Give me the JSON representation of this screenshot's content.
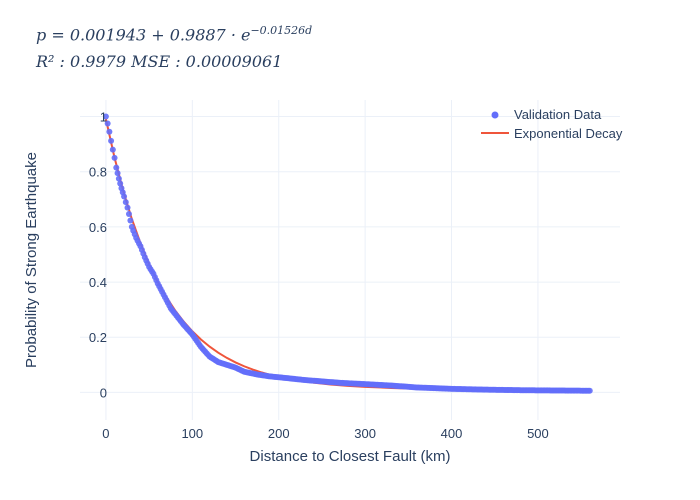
{
  "equation": {
    "line1": "p = 0.001943 + 0.9887 · e^{−0.01526d}",
    "line1_prefix": "p = 0.001943 + 0.9887 · e",
    "line1_exponent": "−0.01526d",
    "line2": "R² : 0.9979   MSE : 0.00009061"
  },
  "chart_data": {
    "type": "scatter",
    "xlabel": "Distance to Closest Fault (km)",
    "ylabel": "Probability of Strong Earthquake",
    "xlim": [
      -30,
      595
    ],
    "ylim": [
      -0.1,
      1.06
    ],
    "xticks": [
      0,
      100,
      200,
      300,
      400,
      500
    ],
    "yticks": [
      0,
      0.2,
      0.4,
      0.6,
      0.8,
      1
    ],
    "xtick_labels": [
      "0",
      "100",
      "200",
      "300",
      "400",
      "500"
    ],
    "ytick_labels": [
      "0",
      "0.2",
      "0.4",
      "0.6",
      "0.8",
      "1"
    ],
    "grid": true,
    "legend_position": "top-right",
    "colors": {
      "validation": "#636efa",
      "fit": "#ef553b",
      "grid": "#ebf0f8"
    },
    "series": [
      {
        "name": "Validation Data",
        "kind": "markers",
        "x": [
          0,
          2,
          4,
          6,
          8,
          10,
          12,
          15,
          18,
          21,
          25,
          30,
          35,
          40,
          45,
          50,
          55,
          60,
          65,
          70,
          75,
          80,
          90,
          100,
          110,
          120,
          130,
          140,
          150,
          160,
          175,
          190,
          200,
          215,
          230,
          250,
          270,
          300,
          330,
          360,
          400,
          440,
          480,
          520,
          560
        ],
        "y": [
          1.0,
          0.975,
          0.945,
          0.912,
          0.88,
          0.85,
          0.815,
          0.775,
          0.74,
          0.71,
          0.67,
          0.6,
          0.56,
          0.53,
          0.49,
          0.455,
          0.43,
          0.395,
          0.365,
          0.335,
          0.305,
          0.285,
          0.245,
          0.21,
          0.165,
          0.13,
          0.11,
          0.1,
          0.09,
          0.075,
          0.065,
          0.058,
          0.055,
          0.05,
          0.045,
          0.04,
          0.035,
          0.03,
          0.025,
          0.018,
          0.013,
          0.01,
          0.008,
          0.007,
          0.006
        ]
      },
      {
        "name": "Exponential Decay",
        "kind": "line",
        "x": [
          0,
          10,
          20,
          30,
          40,
          50,
          60,
          70,
          80,
          90,
          100,
          110,
          120,
          130,
          140,
          150,
          160,
          170,
          180,
          190,
          200,
          220,
          240,
          260,
          280,
          300,
          330,
          360,
          400,
          440,
          480,
          520,
          560
        ],
        "y": [
          0.9906,
          0.8508,
          0.7312,
          0.6287,
          0.5407,
          0.4653,
          0.4006,
          0.3451,
          0.2975,
          0.2567,
          0.2217,
          0.1917,
          0.166,
          0.1439,
          0.125,
          0.1087,
          0.0948,
          0.0829,
          0.0726,
          0.0639,
          0.0564,
          0.0443,
          0.0353,
          0.0287,
          0.0238,
          0.0202,
          0.0162,
          0.0135,
          0.0113,
          0.01,
          0.0088,
          0.0081,
          0.0076
        ]
      }
    ]
  }
}
